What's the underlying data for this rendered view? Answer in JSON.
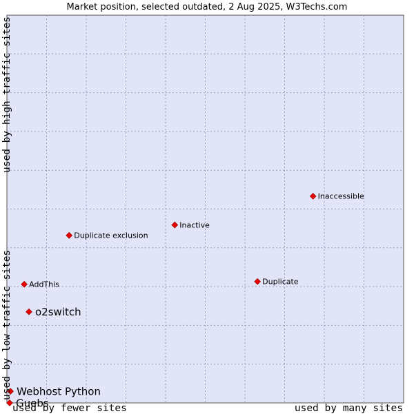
{
  "chart_data": {
    "type": "scatter",
    "title": "Market position, selected outdated, 2 Aug 2025, W3Techs.com",
    "x_label_low": "used by fewer sites",
    "x_label_high": "used by many sites",
    "y_label_low": "used by low traffic sites",
    "y_label_high": "used by high traffic sites",
    "xlim": [
      0,
      100
    ],
    "ylim": [
      0,
      100
    ],
    "grid": true,
    "points": [
      {
        "label": "Inaccessible",
        "x": 77.0,
        "y": 53.3,
        "emphasis": "normal"
      },
      {
        "label": "Inactive",
        "x": 41.9,
        "y": 45.9,
        "emphasis": "normal"
      },
      {
        "label": "Duplicate exclusion",
        "x": 15.1,
        "y": 43.2,
        "emphasis": "normal"
      },
      {
        "label": "Duplicate",
        "x": 62.9,
        "y": 31.3,
        "emphasis": "normal"
      },
      {
        "label": "AddThis",
        "x": 3.7,
        "y": 30.6,
        "emphasis": "normal"
      },
      {
        "label": "o2switch",
        "x": 4.9,
        "y": 23.5,
        "emphasis": "large"
      },
      {
        "label": "Webhost Python",
        "x": 0.2,
        "y": 3.0,
        "emphasis": "large"
      },
      {
        "label": "Guebs",
        "x": 0.0,
        "y": 0.0,
        "emphasis": "large"
      }
    ]
  },
  "colors": {
    "plot_background": "#e2e4f8",
    "grid": "#9a9ac0",
    "marker": "#ee0000",
    "marker_stroke": "#990000",
    "text": "#000000"
  }
}
